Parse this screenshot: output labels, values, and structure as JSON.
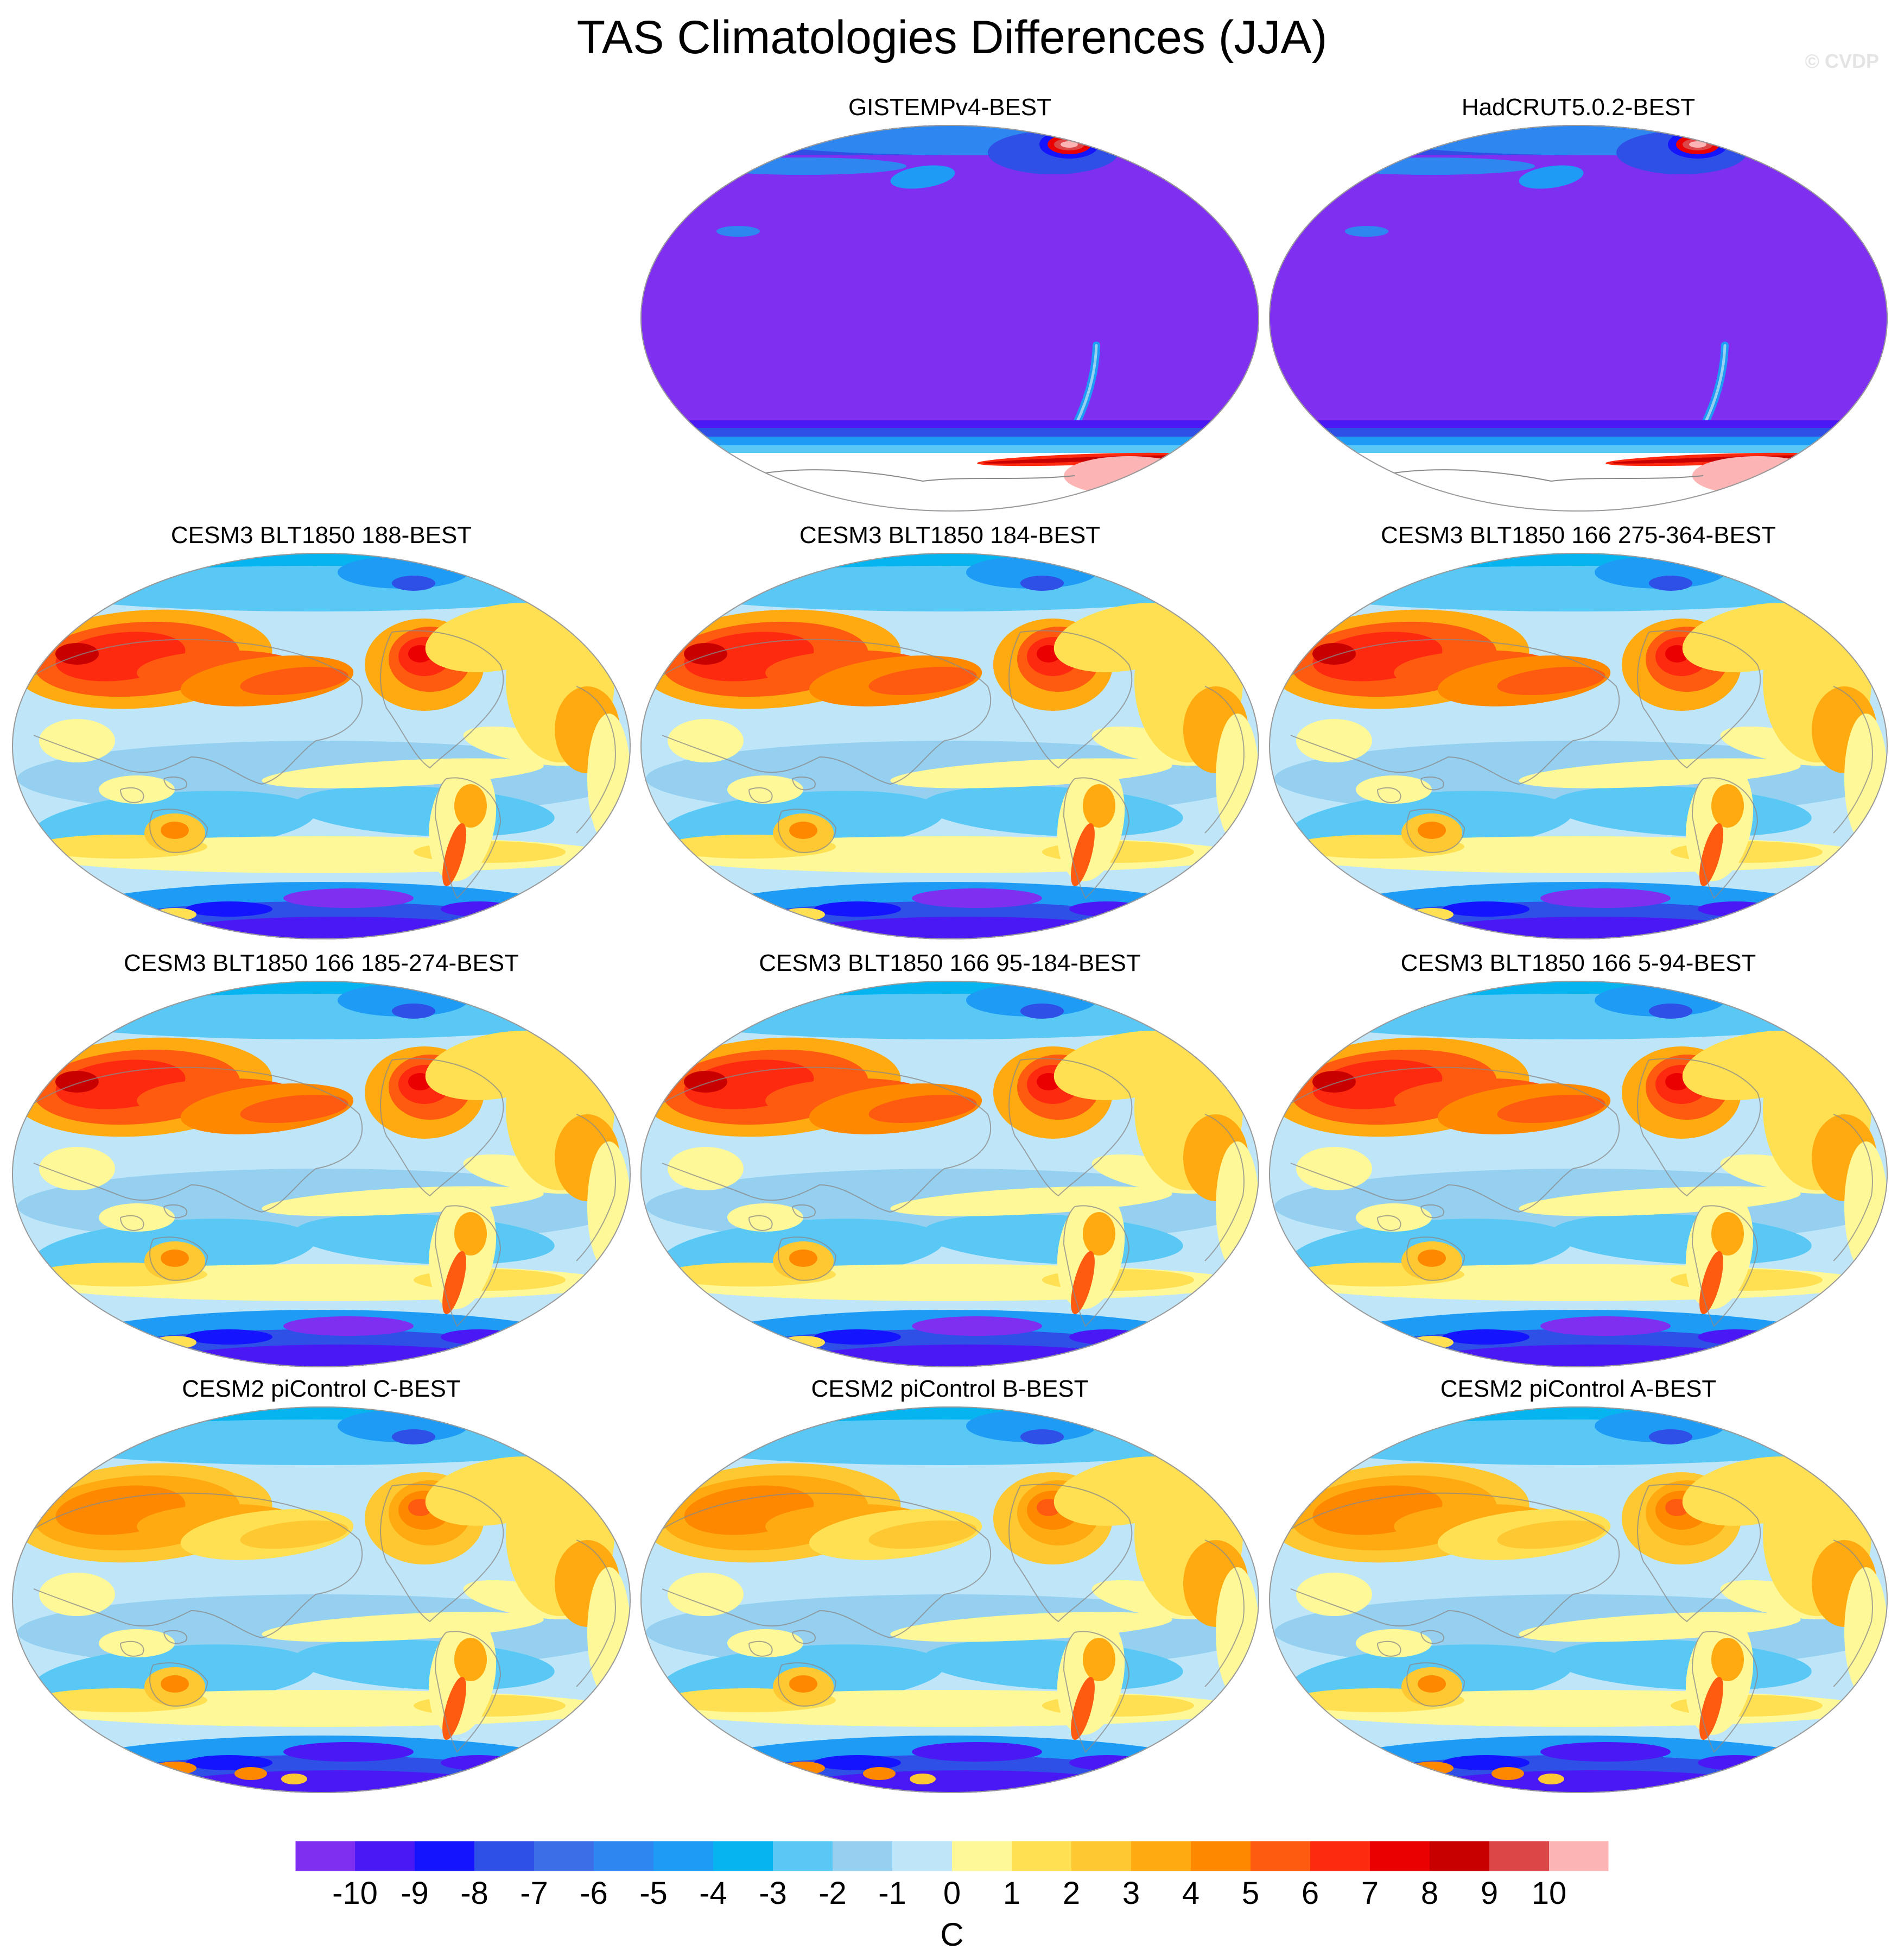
{
  "figure": {
    "title": "TAS Climatologies Differences (JJA)",
    "watermark": "© CVDP"
  },
  "panels": [
    {
      "id": "gistemp",
      "label": "GISTEMPv4-BEST",
      "style": "obs"
    },
    {
      "id": "hadcrut",
      "label": "HadCRUT5.0.2-BEST",
      "style": "obs"
    },
    {
      "id": "blt188",
      "label": "CESM3 BLT1850 188-BEST",
      "style": "blt"
    },
    {
      "id": "blt184",
      "label": "CESM3 BLT1850 184-BEST",
      "style": "blt"
    },
    {
      "id": "blt166a",
      "label": "CESM3 BLT1850 166 275-364-BEST",
      "style": "blt"
    },
    {
      "id": "blt166b",
      "label": "CESM3 BLT1850 166 185-274-BEST",
      "style": "blt"
    },
    {
      "id": "blt166c",
      "label": "CESM3 BLT1850 166 95-184-BEST",
      "style": "blt"
    },
    {
      "id": "blt166d",
      "label": "CESM3 BLT1850 166 5-94-BEST",
      "style": "blt"
    },
    {
      "id": "picC",
      "label": "CESM2 piControl C-BEST",
      "style": "pi"
    },
    {
      "id": "picB",
      "label": "CESM2 piControl B-BEST",
      "style": "pi"
    },
    {
      "id": "picA",
      "label": "CESM2 piControl A-BEST",
      "style": "pi"
    }
  ],
  "colorbar": {
    "units": "C",
    "tick_labels": [
      "-10",
      "-9",
      "-8",
      "-7",
      "-6",
      "-5",
      "-4",
      "-3",
      "-2",
      "-1",
      "0",
      "1",
      "2",
      "3",
      "4",
      "5",
      "6",
      "7",
      "8",
      "9",
      "10"
    ],
    "colors": [
      "#7f2ff0",
      "#4a18f5",
      "#1414ff",
      "#2e50e6",
      "#3c6ee8",
      "#2e86f0",
      "#1e9cf5",
      "#06b4f0",
      "#5ac8f5",
      "#96d0f0",
      "#bee6f8",
      "#fff898",
      "#fee052",
      "#fec832",
      "#feaa10",
      "#fe8800",
      "#fe5a10",
      "#fe2a10",
      "#ea0000",
      "#c80000",
      "#dc4646",
      "#fdb4b4"
    ]
  }
}
